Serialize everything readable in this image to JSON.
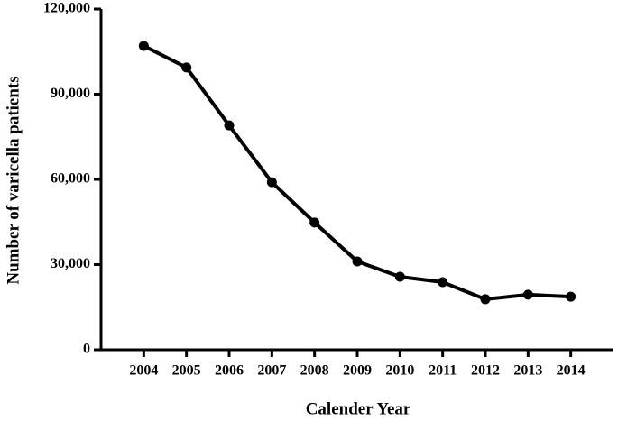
{
  "chart_data": {
    "type": "line",
    "xlabel": "Calender Year",
    "ylabel": "Number of varicella patients",
    "x": [
      2004,
      2005,
      2006,
      2007,
      2008,
      2009,
      2010,
      2011,
      2012,
      2013,
      2014
    ],
    "series": [
      {
        "name": null,
        "color": "#000000",
        "values": [
          107000,
          99400,
          79000,
          59000,
          44800,
          31100,
          25700,
          23800,
          17800,
          19400,
          18700
        ]
      }
    ],
    "xlim": [
      2003,
      2015
    ],
    "xticks": [
      2004,
      2005,
      2006,
      2007,
      2008,
      2009,
      2010,
      2011,
      2012,
      2013,
      2014
    ],
    "ylim": [
      0,
      120000
    ],
    "yticks": [
      0,
      {
        "value": 30000,
        "label": "30,000"
      },
      {
        "value": 60000,
        "label": "60,000"
      },
      {
        "value": 90000,
        "label": "90,000"
      },
      {
        "value": 120000,
        "label": "120,000"
      }
    ],
    "grid": false
  }
}
